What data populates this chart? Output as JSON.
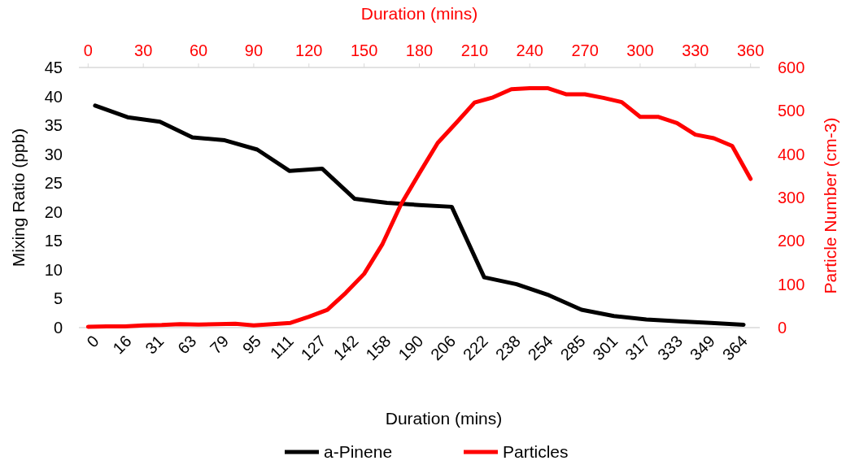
{
  "chart_data": [
    {
      "type": "line",
      "xlabel": "Duration (mins)",
      "ylabel": "Mixing Ratio (ppb)",
      "categories": [
        "0",
        "16",
        "31",
        "63",
        "79",
        "95",
        "111",
        "127",
        "142",
        "158",
        "190",
        "206",
        "222",
        "238",
        "254",
        "285",
        "301",
        "317",
        "333",
        "349",
        "364"
      ],
      "series": [
        {
          "name": "a-Pinene",
          "color": "#000000",
          "values": [
            38.4,
            36.4,
            35.6,
            32.9,
            32.4,
            30.8,
            27.1,
            27.5,
            22.3,
            21.6,
            21.2,
            20.9,
            8.7,
            7.5,
            5.6,
            3.1,
            2.0,
            1.4,
            1.1,
            0.8,
            0.5
          ]
        }
      ],
      "ylim": [
        0,
        45
      ],
      "yticks": [
        0,
        5,
        10,
        15,
        20,
        25,
        30,
        35,
        40,
        45
      ],
      "legend": "bottom",
      "marker": "none",
      "line_style": "solid"
    },
    {
      "type": "line",
      "xlabel": "Duration (mins)",
      "ylabel": "Particle Number (cm-3)",
      "x": [
        0,
        10,
        20,
        30,
        40,
        50,
        60,
        70,
        80,
        90,
        100,
        110,
        120,
        130,
        140,
        150,
        160,
        170,
        180,
        190,
        200,
        210,
        220,
        230,
        240,
        250,
        260,
        270,
        280,
        290,
        300,
        310,
        320,
        330,
        340,
        350,
        360
      ],
      "series": [
        {
          "name": "Particles",
          "color": "#ff0000",
          "values": [
            2,
            3,
            3,
            5,
            6,
            8,
            7,
            8,
            9,
            5,
            8,
            11,
            25,
            41,
            80,
            124,
            193,
            284,
            356,
            426,
            472,
            519,
            531,
            550,
            552,
            552,
            538,
            538,
            530,
            520,
            486,
            486,
            472,
            445,
            437,
            419,
            343
          ]
        }
      ],
      "xlim": [
        -5,
        365
      ],
      "xticks": [
        0,
        30,
        60,
        90,
        120,
        150,
        180,
        210,
        240,
        270,
        300,
        330,
        360
      ],
      "ylim": [
        0,
        600
      ],
      "yticks": [
        0,
        100,
        200,
        300,
        400,
        500,
        600
      ],
      "legend": "bottom",
      "marker": "none",
      "line_style": "solid"
    }
  ]
}
